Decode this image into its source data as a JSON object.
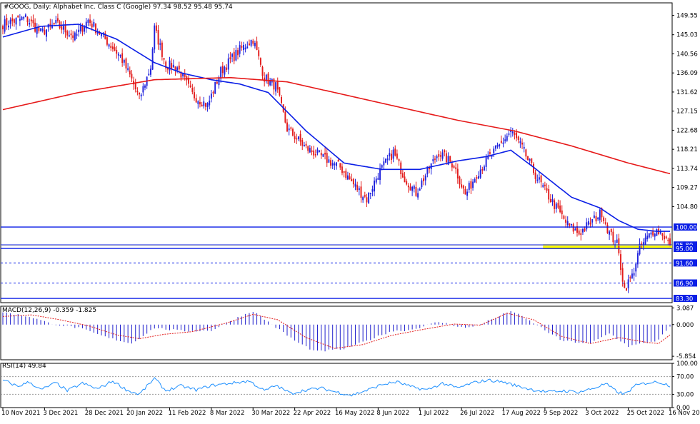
{
  "header": {
    "title": "#GOOG, Daily:  Alphabet Inc. Class C (Google)  97.34 98.52 95.48 95.74"
  },
  "chart_data": [
    {
      "pane": "price",
      "type": "candlestick",
      "title": "#GOOG, Daily:  Alphabet Inc. Class C (Google)  97.34 98.52 95.48 95.74",
      "ohlc_last": {
        "open": 97.34,
        "high": 98.52,
        "low": 95.48,
        "close": 95.74
      },
      "ylim": [
        82.3,
        152.5
      ],
      "y_ticks": [
        "149.55",
        "145.03",
        "140.56",
        "136.09",
        "131.62",
        "127.15",
        "122.68",
        "118.21",
        "113.74",
        "109.27",
        "104.80"
      ],
      "x_ticks": [
        "10 Nov 2021",
        "3 Dec 2021",
        "28 Dec 2021",
        "20 Jan 2022",
        "11 Feb 2022",
        "8 Mar 2022",
        "30 Mar 2022",
        "22 Apr 2022",
        "16 May 2022",
        "8 Jun 2022",
        "1 Jul 2022",
        "26 Jul 2022",
        "17 Aug 2022",
        "9 Sep 2022",
        "3 Oct 2022",
        "25 Oct 2022",
        "16 Nov 2022"
      ],
      "anchors": [
        [
          0,
          147.5
        ],
        [
          12,
          149.0
        ],
        [
          20,
          145.5
        ],
        [
          28,
          147.5
        ],
        [
          38,
          144.5
        ],
        [
          45,
          148.5
        ],
        [
          55,
          143.5
        ],
        [
          62,
          140.0
        ],
        [
          68,
          134.5
        ],
        [
          72,
          130.0
        ],
        [
          78,
          137.5
        ],
        [
          80,
          146.5
        ],
        [
          86,
          138.0
        ],
        [
          92,
          137.5
        ],
        [
          100,
          131.0
        ],
        [
          108,
          128.5
        ],
        [
          115,
          136.5
        ],
        [
          125,
          141.5
        ],
        [
          132,
          144.0
        ],
        [
          138,
          135.0
        ],
        [
          144,
          133.0
        ],
        [
          150,
          123.0
        ],
        [
          160,
          118.5
        ],
        [
          170,
          116.0
        ],
        [
          178,
          114.0
        ],
        [
          185,
          110.0
        ],
        [
          192,
          106.5
        ],
        [
          198,
          112.5
        ],
        [
          206,
          117.5
        ],
        [
          212,
          111.5
        ],
        [
          218,
          108.0
        ],
        [
          224,
          113.0
        ],
        [
          230,
          117.5
        ],
        [
          238,
          114.5
        ],
        [
          244,
          107.5
        ],
        [
          250,
          112.5
        ],
        [
          256,
          116.0
        ],
        [
          262,
          119.0
        ],
        [
          268,
          122.5
        ],
        [
          274,
          118.5
        ],
        [
          280,
          113.0
        ],
        [
          286,
          108.5
        ],
        [
          292,
          104.5
        ],
        [
          298,
          100.5
        ],
        [
          304,
          98.5
        ],
        [
          310,
          101.0
        ],
        [
          316,
          103.5
        ],
        [
          320,
          98.5
        ],
        [
          324,
          96.0
        ],
        [
          328,
          85.5
        ],
        [
          332,
          88.5
        ],
        [
          336,
          95.0
        ],
        [
          340,
          97.5
        ],
        [
          344,
          99.5
        ],
        [
          348,
          98.5
        ],
        [
          352,
          95.7
        ]
      ],
      "series": [
        {
          "name": "MA blue",
          "color": "#0a1ee6",
          "anchors": [
            [
              0,
              144.5
            ],
            [
              20,
              147.0
            ],
            [
              40,
              147.5
            ],
            [
              60,
              144.0
            ],
            [
              80,
              138.5
            ],
            [
              95,
              136.0
            ],
            [
              110,
              134.5
            ],
            [
              125,
              133.5
            ],
            [
              140,
              131.5
            ],
            [
              160,
              122.5
            ],
            [
              180,
              115.0
            ],
            [
              200,
              113.5
            ],
            [
              220,
              113.5
            ],
            [
              240,
              115.5
            ],
            [
              255,
              116.5
            ],
            [
              268,
              118.0
            ],
            [
              280,
              114.0
            ],
            [
              300,
              107.0
            ],
            [
              315,
              104.5
            ],
            [
              325,
              101.5
            ],
            [
              335,
              99.5
            ],
            [
              345,
              99.0
            ],
            [
              352,
              99.0
            ]
          ]
        },
        {
          "name": "MA red",
          "color": "#e61919",
          "anchors": [
            [
              0,
              127.5
            ],
            [
              40,
              131.5
            ],
            [
              80,
              134.5
            ],
            [
              120,
              135.0
            ],
            [
              150,
              134.0
            ],
            [
              180,
              131.0
            ],
            [
              210,
              128.0
            ],
            [
              240,
              125.0
            ],
            [
              270,
              122.5
            ],
            [
              300,
              119.0
            ],
            [
              330,
              115.0
            ],
            [
              352,
              112.5
            ]
          ]
        }
      ],
      "horizontal_levels": [
        {
          "label": "100.00",
          "value": 100.0,
          "style": "solid",
          "color": "#0a1ee6"
        },
        {
          "label": "95.80",
          "value": 95.8,
          "style": "solid",
          "color": "#0a1ee6"
        },
        {
          "label": "95.00",
          "value": 95.0,
          "style": "solid",
          "color": "#0a1ee6"
        },
        {
          "label": "91.60",
          "value": 91.6,
          "style": "dashed",
          "color": "#0a1ee6"
        },
        {
          "label": "86.90",
          "value": 86.9,
          "style": "dashed",
          "color": "#0a1ee6"
        },
        {
          "label": "83.30",
          "value": 83.3,
          "style": "solid",
          "color": "#0a1ee6"
        }
      ],
      "zone": {
        "from": 95.0,
        "to": 95.8,
        "color": "#ffff00",
        "x_start_bar": 285
      }
    },
    {
      "pane": "macd",
      "type": "histogram+line",
      "title": "MACD(12,26,9) -0.359 -1.825",
      "ylim": [
        -6.5,
        3.4
      ],
      "y_ticks": [
        "3.087",
        "0.000",
        "-5.854"
      ],
      "histogram_anchors": [
        [
          0,
          2.3
        ],
        [
          15,
          1.4
        ],
        [
          25,
          0.2
        ],
        [
          40,
          -0.6
        ],
        [
          55,
          -2.4
        ],
        [
          68,
          -3.5
        ],
        [
          80,
          -0.6
        ],
        [
          95,
          -1.2
        ],
        [
          110,
          -1.1
        ],
        [
          125,
          1.5
        ],
        [
          132,
          2.5
        ],
        [
          140,
          0.5
        ],
        [
          155,
          -3.2
        ],
        [
          165,
          -5.0
        ],
        [
          180,
          -4.5
        ],
        [
          192,
          -3.0
        ],
        [
          205,
          -1.2
        ],
        [
          215,
          -1.0
        ],
        [
          230,
          0.5
        ],
        [
          245,
          -0.7
        ],
        [
          260,
          1.2
        ],
        [
          268,
          2.6
        ],
        [
          280,
          0.3
        ],
        [
          295,
          -3.0
        ],
        [
          310,
          -3.5
        ],
        [
          320,
          -1.6
        ],
        [
          330,
          -4.0
        ],
        [
          345,
          -3.0
        ],
        [
          352,
          -0.5
        ]
      ],
      "signal_anchors": [
        [
          0,
          1.5
        ],
        [
          15,
          1.8
        ],
        [
          30,
          0.9
        ],
        [
          45,
          -0.2
        ],
        [
          60,
          -1.9
        ],
        [
          72,
          -2.6
        ],
        [
          85,
          -1.8
        ],
        [
          100,
          -1.3
        ],
        [
          118,
          0.3
        ],
        [
          132,
          1.9
        ],
        [
          145,
          0.9
        ],
        [
          160,
          -2.4
        ],
        [
          175,
          -4.4
        ],
        [
          190,
          -3.7
        ],
        [
          205,
          -2.0
        ],
        [
          220,
          -1.0
        ],
        [
          238,
          0.1
        ],
        [
          252,
          -0.1
        ],
        [
          266,
          2.1
        ],
        [
          280,
          0.9
        ],
        [
          295,
          -2.2
        ],
        [
          310,
          -3.5
        ],
        [
          325,
          -2.4
        ],
        [
          340,
          -3.3
        ],
        [
          346,
          -3.5
        ],
        [
          352,
          -1.9
        ]
      ]
    },
    {
      "pane": "rsi",
      "type": "line",
      "title": "RSI(14) 49.84",
      "ylim": [
        0,
        100
      ],
      "y_ticks": [
        "100.00",
        "70.00",
        "30.00",
        "0.00"
      ],
      "levels": [
        70,
        30
      ],
      "anchors": [
        [
          0,
          62
        ],
        [
          8,
          48
        ],
        [
          14,
          58
        ],
        [
          20,
          40
        ],
        [
          28,
          56
        ],
        [
          34,
          38
        ],
        [
          42,
          55
        ],
        [
          50,
          42
        ],
        [
          58,
          60
        ],
        [
          66,
          38
        ],
        [
          72,
          30
        ],
        [
          80,
          66
        ],
        [
          86,
          38
        ],
        [
          94,
          49
        ],
        [
          102,
          40
        ],
        [
          110,
          50
        ],
        [
          120,
          55
        ],
        [
          130,
          60
        ],
        [
          138,
          38
        ],
        [
          144,
          50
        ],
        [
          152,
          32
        ],
        [
          160,
          40
        ],
        [
          168,
          44
        ],
        [
          176,
          35
        ],
        [
          184,
          28
        ],
        [
          192,
          39
        ],
        [
          200,
          52
        ],
        [
          208,
          58
        ],
        [
          216,
          46
        ],
        [
          224,
          40
        ],
        [
          232,
          55
        ],
        [
          240,
          44
        ],
        [
          248,
          56
        ],
        [
          256,
          62
        ],
        [
          264,
          58
        ],
        [
          272,
          48
        ],
        [
          280,
          40
        ],
        [
          288,
          35
        ],
        [
          296,
          38
        ],
        [
          304,
          35
        ],
        [
          312,
          44
        ],
        [
          318,
          54
        ],
        [
          324,
          36
        ],
        [
          328,
          30
        ],
        [
          334,
          50
        ],
        [
          340,
          56
        ],
        [
          346,
          58
        ],
        [
          352,
          50
        ]
      ]
    }
  ]
}
